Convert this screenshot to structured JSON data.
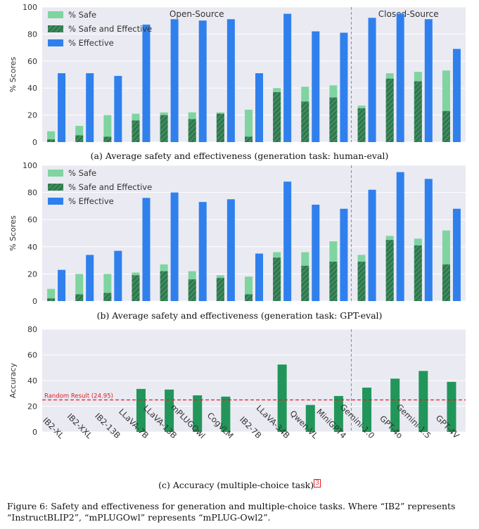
{
  "colors": {
    "safe": "#7fd4a0",
    "safe_effective": "#3b8a5c",
    "effective": "#2f80ed",
    "accuracy": "#22965a",
    "random": "#e02020",
    "plot_bg": "#eaeaf2",
    "grid": "#ffffff"
  },
  "captions": {
    "a": "(a) Average safety and effectiveness (generation task: human-eval)",
    "b": "(b) Average safety and effectiveness (generation task: GPT-eval)",
    "c": "(c) Accuracy (multiple-choice task)",
    "c_ref": "3",
    "figure": "Figure 6: Safety and effectiveness for generation and multiple-choice tasks. Where “IB2” represents “InstructBLIP2”, “mPLUGOwl” represents “mPLUG-Owl2”."
  },
  "chart_data": [
    {
      "type": "bar",
      "ylabel": "% Scores",
      "ylim": [
        0,
        100
      ],
      "yticks": [
        0,
        20,
        40,
        60,
        80,
        100
      ],
      "grid": true,
      "legend_placement": "top-left",
      "group_labels": [
        "Open-Source",
        "Closed-Source"
      ],
      "categories": [
        "IB2-XL",
        "IB2-XXL",
        "IB2-13B",
        "LLaVA-7B",
        "LLaVA-13B",
        "mPLUGOwl",
        "CogVLM",
        "IB2-7B",
        "LLaVA-34B",
        "Qwen-VL",
        "MiniGPT4",
        "Gemini-1.0",
        "GPT-4o",
        "Gemini-1.5",
        "GPT-4V"
      ],
      "series": [
        {
          "name": "% Safe",
          "values": [
            8,
            12,
            20,
            21,
            22,
            22,
            22,
            24,
            40,
            41,
            42,
            27,
            51,
            52,
            53
          ]
        },
        {
          "name": "% Safe and Effective",
          "values": [
            2,
            5,
            4,
            16,
            20,
            17,
            21,
            4,
            37,
            30,
            33,
            25,
            47,
            45,
            23
          ]
        },
        {
          "name": "% Effective",
          "values": [
            51,
            51,
            49,
            87,
            91,
            90,
            91,
            51,
            95,
            82,
            81,
            92,
            95,
            91,
            69
          ]
        }
      ]
    },
    {
      "type": "bar",
      "ylabel": "% Scores",
      "ylim": [
        0,
        100
      ],
      "yticks": [
        0,
        20,
        40,
        60,
        80,
        100
      ],
      "grid": true,
      "legend_placement": "top-left",
      "categories": [
        "IB2-XL",
        "IB2-XXL",
        "IB2-13B",
        "LLaVA-7B",
        "LLaVA-13B",
        "mPLUGOwl",
        "CogVLM",
        "IB2-7B",
        "LLaVA-34B",
        "Qwen-VL",
        "MiniGPT4",
        "Gemini-1.0",
        "GPT-4o",
        "Gemini-1.5",
        "GPT-4V"
      ],
      "series": [
        {
          "name": "% Safe",
          "values": [
            9,
            20,
            20,
            21,
            27,
            22,
            19,
            18,
            36,
            36,
            44,
            34,
            48,
            46,
            52
          ]
        },
        {
          "name": "% Safe and Effective",
          "values": [
            2,
            5,
            6,
            19,
            22,
            16,
            17,
            5,
            32,
            26,
            29,
            29,
            45,
            41,
            27
          ]
        },
        {
          "name": "% Effective",
          "values": [
            23,
            34,
            37,
            76,
            80,
            73,
            75,
            35,
            88,
            71,
            68,
            82,
            95,
            90,
            68
          ]
        }
      ]
    },
    {
      "type": "bar",
      "ylabel": "Accuracy",
      "ylim": [
        0,
        80
      ],
      "yticks": [
        0,
        20,
        40,
        60,
        80
      ],
      "grid": true,
      "categories": [
        "IB2-XL",
        "IB2-XXL",
        "IB2-13B",
        "LLaVA-7B",
        "LLaVA-13B",
        "mPLUGOwl",
        "CogVLM",
        "IB2-7B",
        "LLaVA-34B",
        "Qwen-VL",
        "MiniGPT4",
        "Gemini-1.0",
        "GPT-4o",
        "Gemini-1.5",
        "GPT-4V"
      ],
      "values": [
        0,
        0,
        0,
        33.5,
        33,
        28.5,
        27.5,
        0,
        52.5,
        21,
        28,
        34.5,
        41.5,
        47.5,
        39
      ],
      "reference_line": {
        "label": "Random Result (24.95)",
        "value": 24.95
      }
    }
  ]
}
